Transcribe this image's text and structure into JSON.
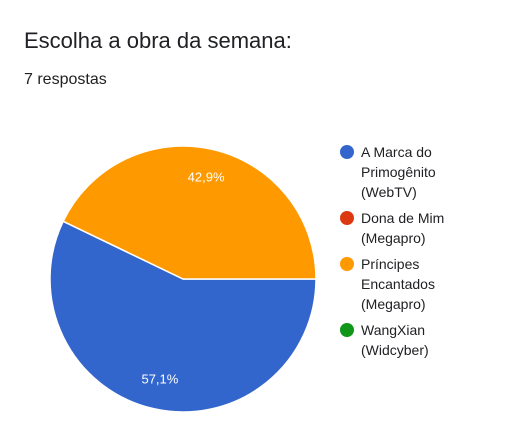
{
  "header": {
    "title": "Escolha a obra da semana:",
    "responses": "7 respostas"
  },
  "chart_data": {
    "type": "pie",
    "title": "Escolha a obra da semana:",
    "categories": [
      "A Marca do Primogênito (WebTV)",
      "Dona de Mim (Megapro)",
      "Príncipes Encantados (Megapro)",
      "WangXian (Widcyber)"
    ],
    "legend_lines": [
      [
        "A Marca do",
        "Primogênito",
        "(WebTV)"
      ],
      [
        "Dona de Mim",
        "(Megapro)"
      ],
      [
        "Príncipes",
        "Encantados",
        "(Megapro)"
      ],
      [
        "WangXian",
        "(Widcyber)"
      ]
    ],
    "values": [
      4,
      0,
      3,
      0
    ],
    "percent_labels": [
      "57,1%",
      "",
      "42,9%",
      ""
    ],
    "colors": [
      "#3366cc",
      "#dc3912",
      "#ff9900",
      "#109618"
    ],
    "legend_position": "right"
  }
}
